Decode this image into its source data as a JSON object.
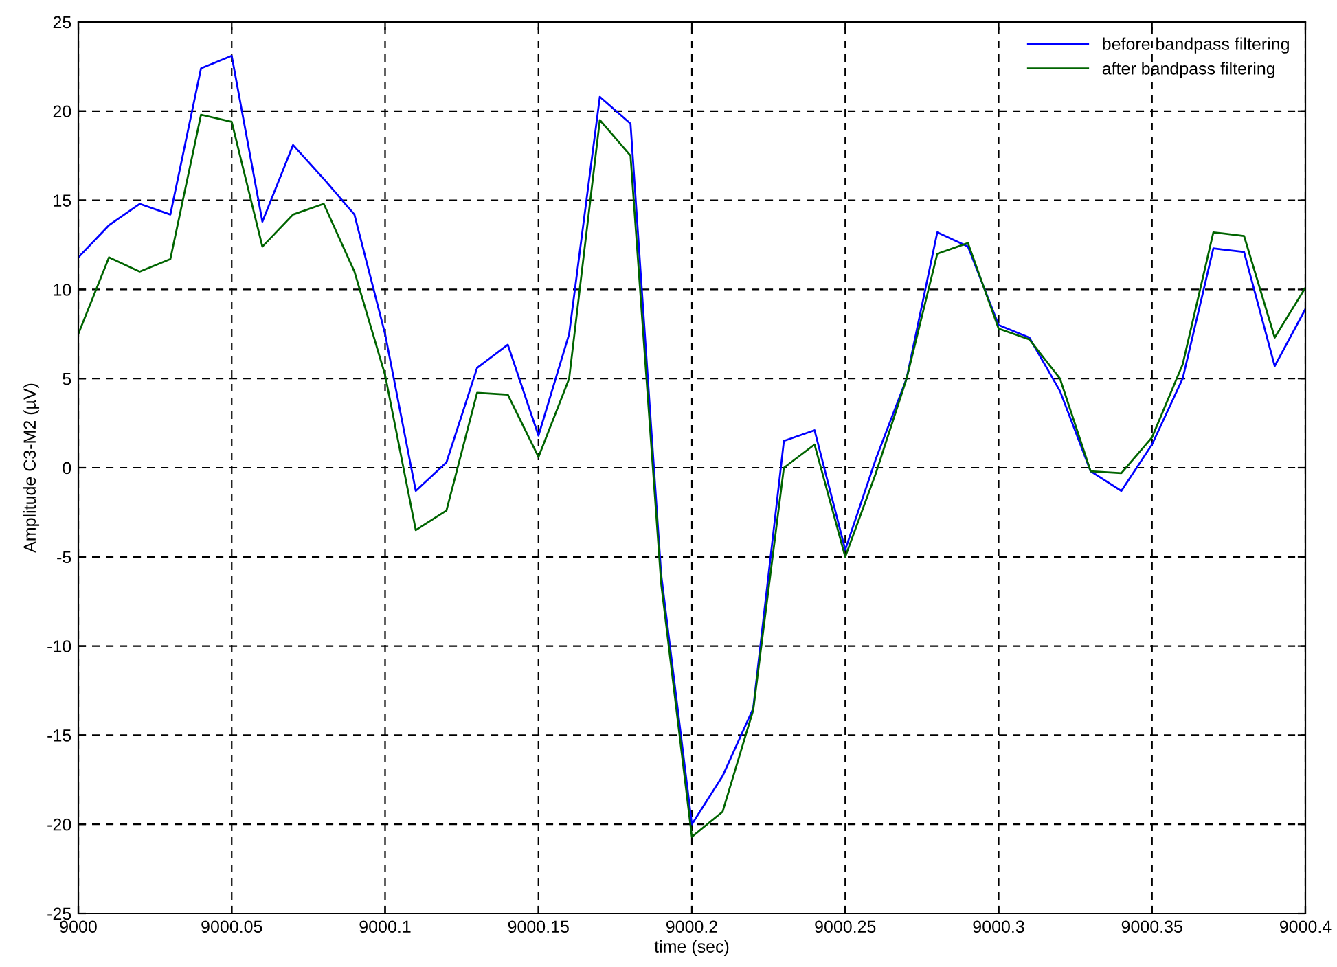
{
  "chart_data": {
    "type": "line",
    "xlabel": "time (sec)",
    "ylabel": "Amplitude C3-M2 (µV)",
    "x": [
      9000,
      9000.01,
      9000.02,
      9000.03,
      9000.04,
      9000.05,
      9000.06,
      9000.07,
      9000.08,
      9000.09,
      9000.1,
      9000.11,
      9000.12,
      9000.13,
      9000.14,
      9000.15,
      9000.16,
      9000.17,
      9000.18,
      9000.19,
      9000.2,
      9000.21,
      9000.22,
      9000.23,
      9000.24,
      9000.25,
      9000.26,
      9000.27,
      9000.28,
      9000.29,
      9000.3,
      9000.31,
      9000.32,
      9000.33,
      9000.34,
      9000.35,
      9000.36,
      9000.37,
      9000.38,
      9000.39,
      9000.4
    ],
    "series": [
      {
        "name": "before bandpass filtering",
        "color": "#0000ff",
        "values": [
          11.8,
          13.6,
          14.8,
          14.2,
          22.4,
          23.1,
          13.8,
          18.1,
          16.2,
          14.2,
          7.5,
          -1.3,
          0.3,
          5.6,
          6.9,
          1.8,
          7.5,
          20.8,
          19.3,
          -6,
          -20,
          -17.3,
          -13.5,
          1.5,
          2.1,
          -4.6,
          0.5,
          5,
          13.2,
          12.4,
          8,
          7.3,
          4.3,
          -0.2,
          -1.3,
          1.3,
          5,
          12.3,
          12.1,
          5.7,
          8.9
        ]
      },
      {
        "name": "after bandpass filtering",
        "color": "#006400",
        "values": [
          7.5,
          11.8,
          11,
          11.7,
          19.8,
          19.4,
          12.4,
          14.2,
          14.8,
          11,
          5.2,
          -3.5,
          -2.4,
          4.2,
          4.1,
          0.6,
          5,
          19.5,
          17.5,
          -6.5,
          -20.7,
          -19.3,
          -13.6,
          0,
          1.3,
          -5,
          -0.3,
          5,
          12,
          12.6,
          7.8,
          7.2,
          5,
          -0.2,
          -0.3,
          1.7,
          5.8,
          13.2,
          13,
          7.3,
          10.1
        ]
      }
    ],
    "xlim": [
      9000,
      9000.4
    ],
    "xticks": [
      9000,
      9000.05,
      9000.1,
      9000.15,
      9000.2,
      9000.25,
      9000.3,
      9000.35,
      9000.4
    ],
    "ylim": [
      -25,
      25
    ],
    "yticks": [
      -25,
      -20,
      -15,
      -10,
      -5,
      0,
      5,
      10,
      15,
      20,
      25
    ],
    "grid": true,
    "legend": "top right",
    "line_style": "solid",
    "marker": "none"
  }
}
